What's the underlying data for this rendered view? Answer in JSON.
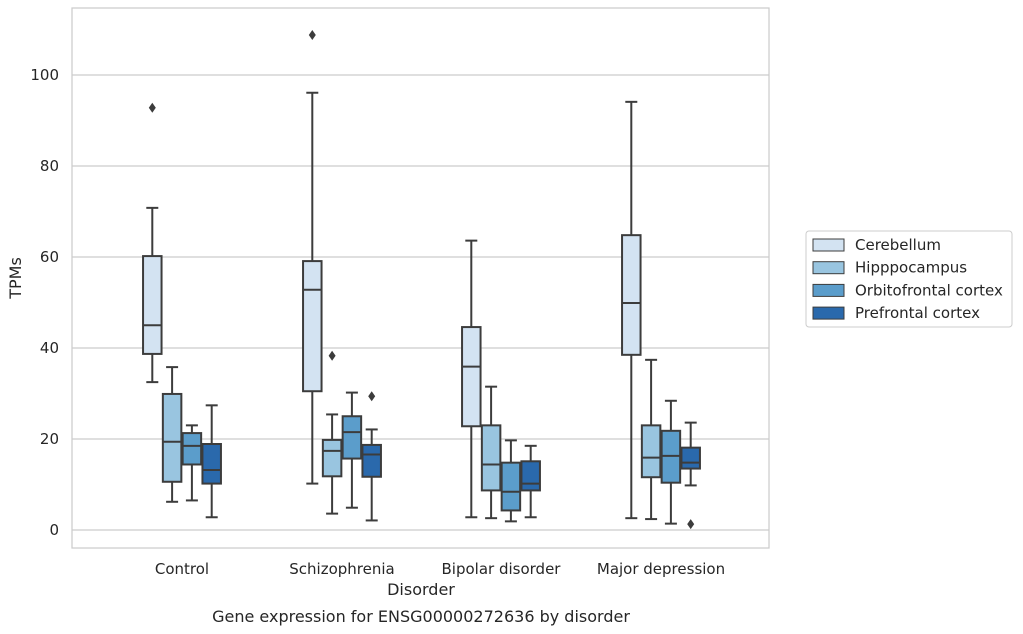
{
  "caption": "Gene expression for ENSG00000272636 by disorder",
  "chart_data": {
    "type": "box",
    "title": "",
    "xlabel": "Disorder",
    "ylabel": "TPMs",
    "ylim": [
      -4,
      114
    ],
    "yticks": [
      0,
      20,
      40,
      60,
      80,
      100
    ],
    "grid": "horizontal",
    "legend_position": "right",
    "categories": [
      "Control",
      "Schizophrenia",
      "Bipolar disorder",
      "Major depression"
    ],
    "series": [
      {
        "name": "Cerebellum",
        "color": "#d3e3f2",
        "boxes": [
          {
            "whisker_low": 32.5,
            "q1": 38.7,
            "median": 45.0,
            "q3": 60.2,
            "whisker_high": 70.8,
            "outliers": [
              92.8
            ]
          },
          {
            "whisker_low": 10.2,
            "q1": 30.5,
            "median": 52.8,
            "q3": 59.1,
            "whisker_high": 96.1,
            "outliers": [
              108.8
            ]
          },
          {
            "whisker_low": 2.8,
            "q1": 22.8,
            "median": 35.9,
            "q3": 44.6,
            "whisker_high": 63.6,
            "outliers": []
          },
          {
            "whisker_low": 2.6,
            "q1": 38.5,
            "median": 49.9,
            "q3": 64.8,
            "whisker_high": 94.1,
            "outliers": []
          }
        ]
      },
      {
        "name": "Hipppocampus",
        "color": "#99c5e0",
        "boxes": [
          {
            "whisker_low": 6.2,
            "q1": 10.6,
            "median": 19.4,
            "q3": 29.9,
            "whisker_high": 35.8,
            "outliers": []
          },
          {
            "whisker_low": 3.6,
            "q1": 11.8,
            "median": 17.4,
            "q3": 19.8,
            "whisker_high": 25.4,
            "outliers": [
              38.3
            ]
          },
          {
            "whisker_low": 2.6,
            "q1": 8.7,
            "median": 14.4,
            "q3": 23.0,
            "whisker_high": 31.5,
            "outliers": []
          },
          {
            "whisker_low": 2.4,
            "q1": 11.6,
            "median": 15.9,
            "q3": 23.0,
            "whisker_high": 37.4,
            "outliers": []
          }
        ]
      },
      {
        "name": "Orbitofrontal cortex",
        "color": "#5b9dcb",
        "boxes": [
          {
            "whisker_low": 6.5,
            "q1": 14.4,
            "median": 18.5,
            "q3": 21.3,
            "whisker_high": 23.0,
            "outliers": []
          },
          {
            "whisker_low": 4.9,
            "q1": 15.7,
            "median": 21.5,
            "q3": 25.0,
            "whisker_high": 30.2,
            "outliers": []
          },
          {
            "whisker_low": 1.9,
            "q1": 4.3,
            "median": 8.4,
            "q3": 14.8,
            "whisker_high": 19.7,
            "outliers": []
          },
          {
            "whisker_low": 1.4,
            "q1": 10.4,
            "median": 16.3,
            "q3": 21.8,
            "whisker_high": 28.4,
            "outliers": []
          }
        ]
      },
      {
        "name": "Prefrontal cortex",
        "color": "#2a69ac",
        "boxes": [
          {
            "whisker_low": 2.8,
            "q1": 10.2,
            "median": 13.2,
            "q3": 18.9,
            "whisker_high": 27.4,
            "outliers": []
          },
          {
            "whisker_low": 2.1,
            "q1": 11.7,
            "median": 16.6,
            "q3": 18.7,
            "whisker_high": 22.1,
            "outliers": [
              29.4
            ]
          },
          {
            "whisker_low": 2.8,
            "q1": 8.7,
            "median": 10.2,
            "q3": 15.1,
            "whisker_high": 18.5,
            "outliers": []
          },
          {
            "whisker_low": 9.8,
            "q1": 13.5,
            "median": 14.8,
            "q3": 18.1,
            "whisker_high": 23.6,
            "outliers": [
              1.3
            ]
          }
        ]
      }
    ]
  }
}
